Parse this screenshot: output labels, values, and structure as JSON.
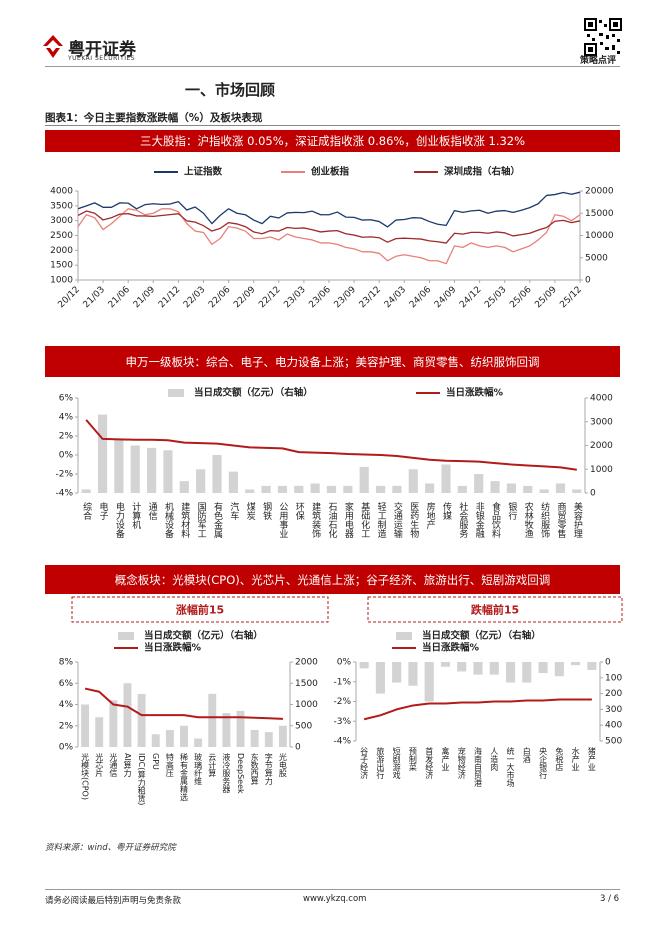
{
  "header": {
    "logo_cn": "粤开证券",
    "logo_en": "YUEKAI SECURITIES",
    "doc_type": "策略点评"
  },
  "section_title": "一、市场回顾",
  "figure_title": "图表1：今日主要指数涨跌幅（%）及板块表现",
  "banners": [
    "三大股指：沪指收涨 0.05%，深证成指收涨 0.86%，创业板指收涨 1.32%",
    "申万一级板块：综合、电子、电力设备上涨；美容护理、商贸零售、纺织服饰回调",
    "概念板块：光模块(CPO)、光芯片、光通信上涨；谷子经济、旅游出行、短剧游戏回调"
  ],
  "chart_data": [
    {
      "type": "line",
      "categories": [
        "20/12",
        null,
        null,
        "21/03",
        null,
        null,
        "21/06",
        null,
        null,
        "21/09",
        null,
        null,
        "21/12",
        null,
        null,
        "22/03",
        null,
        null,
        "22/06",
        null,
        null,
        "22/09",
        null,
        null,
        "22/12",
        null,
        null,
        "23/03",
        null,
        null,
        "23/06",
        null,
        null,
        "23/09",
        null,
        null,
        "23/12",
        null,
        null,
        "24/03",
        null,
        null,
        "24/06",
        null,
        null,
        "24/09",
        null,
        null,
        "24/12",
        null,
        null,
        "25/03",
        null,
        null,
        "25/06",
        null,
        null,
        "25/09",
        null,
        null,
        "25/12"
      ],
      "ylim": [
        1000,
        4000
      ],
      "yticks": [
        1000,
        1500,
        2000,
        2500,
        3000,
        3500,
        4000
      ],
      "y2lim": [
        0,
        20000
      ],
      "y2ticks": [
        0,
        5000,
        10000,
        15000,
        20000
      ],
      "series": [
        {
          "name": "上证指数",
          "color": "#1b3a6b",
          "values": [
            3400,
            3500,
            3600,
            3450,
            3450,
            3600,
            3590,
            3400,
            3540,
            3570,
            3550,
            3560,
            3640,
            3360,
            3460,
            3250,
            2900,
            3180,
            3400,
            3250,
            3200,
            3020,
            2900,
            3150,
            3090,
            3260,
            3280,
            3270,
            3320,
            3200,
            3200,
            3290,
            3120,
            3110,
            3020,
            3030,
            2970,
            2790,
            3020,
            3040,
            3100,
            3090,
            2970,
            2880,
            2840,
            3340,
            3280,
            3330,
            3350,
            3250,
            3320,
            3340,
            3280,
            3350,
            3440,
            3570,
            3850,
            3880,
            3950,
            3890,
            3960
          ]
        },
        {
          "name": "创业板指",
          "color": "#e8807a",
          "values": [
            2800,
            3200,
            3100,
            2700,
            2900,
            3150,
            3400,
            3350,
            3200,
            3250,
            3400,
            3400,
            3300,
            2900,
            2650,
            2600,
            2200,
            2400,
            2800,
            2750,
            2650,
            2400,
            2400,
            2450,
            2350,
            2550,
            2450,
            2400,
            2350,
            2250,
            2250,
            2200,
            2100,
            2050,
            1950,
            1950,
            1900,
            1650,
            1800,
            1850,
            1800,
            1750,
            1650,
            1650,
            1550,
            2150,
            2100,
            2250,
            2150,
            2100,
            2150,
            2100,
            1950,
            2050,
            2150,
            2350,
            2600,
            3200,
            3150,
            3000,
            3200
          ]
        },
        {
          "name": "深圳成指（右轴）",
          "color": "#9e2a2b",
          "axis": "y2",
          "values": [
            14500,
            15500,
            15000,
            13500,
            14000,
            14800,
            14900,
            14400,
            14400,
            14300,
            14500,
            14700,
            14900,
            13300,
            13000,
            12200,
            11000,
            11600,
            12900,
            12600,
            12000,
            10800,
            10400,
            11100,
            11000,
            11800,
            11600,
            11700,
            11300,
            10800,
            11000,
            11100,
            10400,
            10100,
            9600,
            9700,
            9500,
            8500,
            9300,
            9400,
            9300,
            9200,
            8800,
            8600,
            8300,
            10500,
            10300,
            10700,
            10700,
            10500,
            10800,
            10600,
            9900,
            10200,
            10500,
            11200,
            11800,
            13200,
            13400,
            12900,
            13300
          ]
        }
      ]
    },
    {
      "type": "combo",
      "categories": [
        "综合",
        "电子",
        "电力设备",
        "计算机",
        "通信",
        "机械设备",
        "建筑材料",
        "国防军工",
        "有色金属",
        "汽车",
        "煤炭",
        "钢铁",
        "公用事业",
        "环保",
        "建筑装饰",
        "石油石化",
        "家用电器",
        "基础化工",
        "轻工制造",
        "交通运输",
        "医药生物",
        "房地产",
        "传媒",
        "社会服务",
        "非银金融",
        "食品饮料",
        "银行",
        "农林牧渔",
        "纺织服饰",
        "商贸零售",
        "美容护理"
      ],
      "ylim": [
        -4,
        6
      ],
      "yticks": [
        {
          "value": -4,
          "label": "-4%"
        },
        {
          "value": -2,
          "label": "-2%"
        },
        {
          "value": 0,
          "label": "0%"
        },
        {
          "value": 2,
          "label": "2%"
        },
        {
          "value": 4,
          "label": "4%"
        },
        {
          "value": 6,
          "label": "6%"
        }
      ],
      "y2lim": [
        0,
        4000
      ],
      "y2ticks": [
        0,
        1000,
        2000,
        3000,
        4000
      ],
      "series": [
        {
          "name": "当日成交额（亿元）（右轴）",
          "type": "bar",
          "axis": "y2",
          "color": "#d3d3d3",
          "values": [
            150,
            3300,
            2300,
            2000,
            1900,
            1800,
            500,
            1000,
            1600,
            900,
            150,
            300,
            300,
            300,
            400,
            300,
            300,
            1100,
            300,
            300,
            1000,
            400,
            1200,
            300,
            800,
            500,
            400,
            300,
            150,
            400,
            150
          ]
        },
        {
          "name": "当日涨跌幅%",
          "type": "line",
          "color": "#b31b1b",
          "values": [
            3.7,
            1.7,
            1.65,
            1.6,
            1.6,
            1.55,
            1.3,
            1.25,
            1.2,
            1.0,
            0.8,
            0.75,
            0.7,
            0.3,
            0.25,
            0.2,
            0.1,
            0.05,
            0.0,
            -0.1,
            -0.3,
            -0.5,
            -0.6,
            -0.65,
            -0.7,
            -0.85,
            -1.0,
            -1.1,
            -1.2,
            -1.3,
            -1.55
          ]
        }
      ]
    },
    {
      "type": "combo",
      "title": "涨幅前15",
      "categories": [
        "光模块(CPO)",
        "光芯片",
        "光通信",
        "AI算力",
        "IDC(算力租赁)",
        "GPU",
        "特高压",
        "稀有金属精选",
        "玻璃纤维",
        "云计算",
        "液冷服务器",
        "DeepSeek",
        "东数西算",
        "字节算力",
        "光电股"
      ],
      "ylim": [
        0,
        8
      ],
      "yticks": [
        {
          "value": 0,
          "label": "0%"
        },
        {
          "value": 2,
          "label": "2%"
        },
        {
          "value": 4,
          "label": "4%"
        },
        {
          "value": 6,
          "label": "6%"
        },
        {
          "value": 8,
          "label": "8%"
        }
      ],
      "y2lim": [
        0,
        2000
      ],
      "y2ticks": [
        0,
        500,
        1000,
        1500,
        2000
      ],
      "series": [
        {
          "name": "当日成交额（亿元）（右轴）",
          "type": "bar",
          "axis": "y2",
          "color": "#d3d3d3",
          "values": [
            1000,
            700,
            1100,
            1500,
            1250,
            300,
            400,
            500,
            200,
            1250,
            800,
            850,
            400,
            350,
            500
          ]
        },
        {
          "name": "当日涨跌幅%",
          "type": "line",
          "color": "#b31b1b",
          "values": [
            5.5,
            5.2,
            4.0,
            3.8,
            3.0,
            3.0,
            3.0,
            3.0,
            2.8,
            2.8,
            2.8,
            2.8,
            2.75,
            2.7,
            2.65
          ]
        }
      ]
    },
    {
      "type": "combo",
      "title": "跌幅前15",
      "categories": [
        "谷子经济",
        "旅游出行",
        "短剧游戏",
        "预制菜",
        "首发经济",
        "禽产业",
        "宠物经济",
        "海南自贸港",
        "人造肉",
        "统一大市场",
        "白酒",
        "央企银行",
        "免税店",
        "水产业",
        "猪产业"
      ],
      "ylim": [
        -4,
        0
      ],
      "yticks": [
        {
          "value": -4,
          "label": "-4%"
        },
        {
          "value": -3,
          "label": "-3%"
        },
        {
          "value": -2,
          "label": "-2%"
        },
        {
          "value": -1,
          "label": "-1%"
        },
        {
          "value": 0,
          "label": "0%"
        }
      ],
      "y2lim": [
        500,
        0
      ],
      "y2ticks": [
        0,
        100,
        200,
        300,
        400,
        500
      ],
      "series": [
        {
          "name": "当日成交额（亿元）（右轴）",
          "type": "bar",
          "axis": "y2",
          "color": "#d3d3d3",
          "values": [
            40,
            200,
            130,
            150,
            250,
            30,
            60,
            80,
            80,
            130,
            130,
            70,
            90,
            20,
            50
          ]
        },
        {
          "name": "当日涨跌幅%",
          "type": "line",
          "color": "#b31b1b",
          "values": [
            -2.9,
            -2.7,
            -2.4,
            -2.2,
            -2.1,
            -2.1,
            -2.05,
            -2.05,
            -2.0,
            -2.0,
            -1.95,
            -1.95,
            -1.9,
            -1.9,
            -1.9
          ]
        }
      ]
    }
  ],
  "source": "资料来源：wind、粤开证券研究院",
  "footer": {
    "disclaimer": "请务必阅读最后特别声明与免责条款",
    "url": "www.ykzq.com",
    "page": "3 / 6"
  }
}
